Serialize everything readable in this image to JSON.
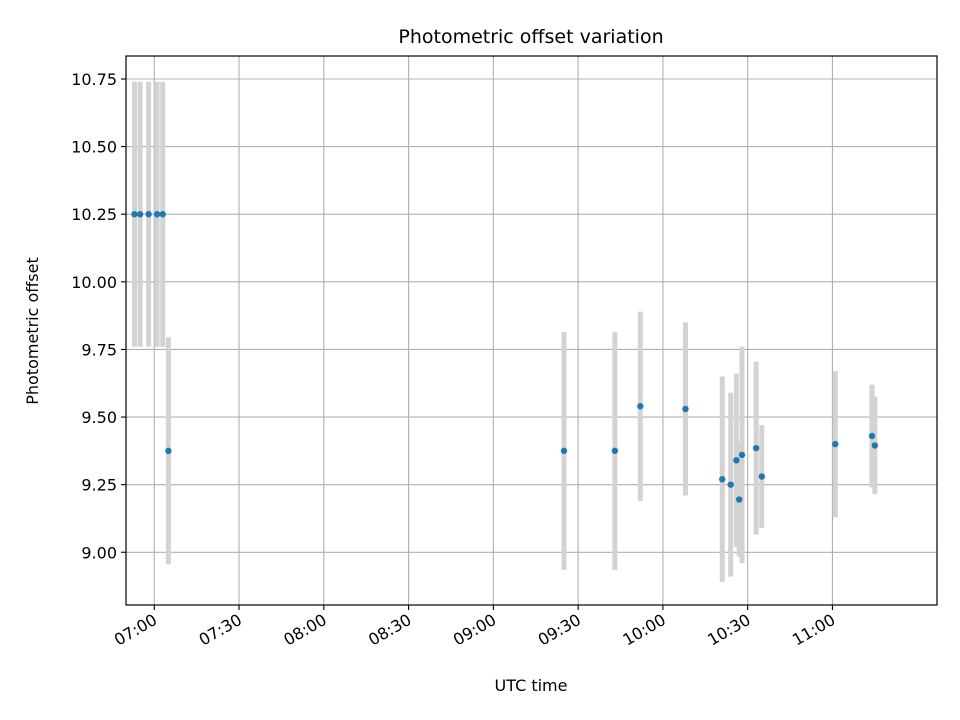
{
  "chart_data": {
    "type": "scatter",
    "title": "Photometric offset variation",
    "xlabel": "UTC time",
    "ylabel": "Photometric offset",
    "x_axis": {
      "type": "time",
      "range": [
        "06:50",
        "11:37"
      ],
      "ticks": [
        "07:00",
        "07:30",
        "08:00",
        "08:30",
        "09:00",
        "09:30",
        "10:00",
        "10:30",
        "11:00"
      ]
    },
    "y_axis": {
      "range": [
        8.805,
        10.835
      ],
      "ticks": [
        "9.00",
        "9.25",
        "9.50",
        "9.75",
        "10.00",
        "10.25",
        "10.50",
        "10.75"
      ]
    },
    "grid": true,
    "marker_color": "#1f77b4",
    "errorbar_color": "#d3d3d3",
    "points": [
      {
        "x": "06:53",
        "y": 10.25,
        "err": 0.49
      },
      {
        "x": "06:55",
        "y": 10.25,
        "err": 0.49
      },
      {
        "x": "06:58",
        "y": 10.25,
        "err": 0.49
      },
      {
        "x": "07:01",
        "y": 10.25,
        "err": 0.49
      },
      {
        "x": "07:03",
        "y": 10.25,
        "err": 0.49
      },
      {
        "x": "07:05",
        "y": 9.375,
        "err": 0.42
      },
      {
        "x": "09:25",
        "y": 9.375,
        "err": 0.44
      },
      {
        "x": "09:43",
        "y": 9.375,
        "err": 0.44
      },
      {
        "x": "09:52",
        "y": 9.54,
        "err": 0.35
      },
      {
        "x": "10:08",
        "y": 9.53,
        "err": 0.32
      },
      {
        "x": "10:21",
        "y": 9.27,
        "err": 0.38
      },
      {
        "x": "10:24",
        "y": 9.25,
        "err": 0.34
      },
      {
        "x": "10:26",
        "y": 9.34,
        "err": 0.32
      },
      {
        "x": "10:27",
        "y": 9.195,
        "err": 0.21
      },
      {
        "x": "10:28",
        "y": 9.36,
        "err": 0.4
      },
      {
        "x": "10:33",
        "y": 9.385,
        "err": 0.32
      },
      {
        "x": "10:35",
        "y": 9.28,
        "err": 0.19
      },
      {
        "x": "11:01",
        "y": 9.4,
        "err": 0.27
      },
      {
        "x": "11:14",
        "y": 9.43,
        "err": 0.19
      },
      {
        "x": "11:15",
        "y": 9.395,
        "err": 0.18
      }
    ]
  }
}
